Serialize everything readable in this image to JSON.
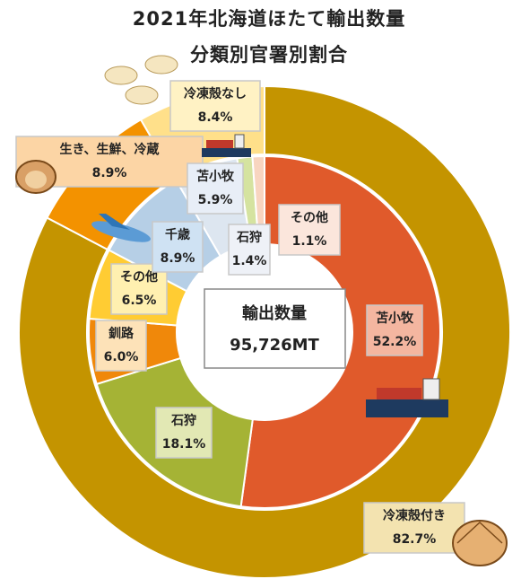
{
  "chart_data": {
    "type": "donut",
    "title": "2021年北海道ほたて輸出数量",
    "subtitle": "分類別官署別割合",
    "center_label": "輸出数量",
    "center_value": "95,726MT",
    "outer": {
      "categories": [
        "冷凍殻付き",
        "生き、生鮮、冷蔵",
        "冷凍殻なし"
      ],
      "values": [
        82.7,
        8.9,
        8.4
      ],
      "value_labels": [
        "82.7%",
        "8.9%",
        "8.4%"
      ],
      "colors": [
        "#c49400",
        "#f39200",
        "#ffe08a"
      ],
      "label_colors": [
        "#f3e3b0",
        "#fcd5a5",
        "#fff2c4"
      ]
    },
    "inner": {
      "categories": [
        "苫小牧",
        "石狩",
        "釧路",
        "その他",
        "千歳",
        "苫小牧",
        "石狩",
        "その他"
      ],
      "values": [
        52.2,
        18.1,
        6.0,
        6.5,
        8.9,
        5.9,
        1.4,
        1.1
      ],
      "value_labels": [
        "52.2%",
        "18.1%",
        "6.0%",
        "6.5%",
        "8.9%",
        "5.9%",
        "1.4%",
        "1.1%"
      ],
      "colors": [
        "#e05a2b",
        "#a5b335",
        "#f0880a",
        "#ffcc33",
        "#b6cfe6",
        "#dde6f0",
        "#d5e3a0",
        "#f8d5c0"
      ],
      "label_colors": [
        "#f4b6a0",
        "#e2e8b4",
        "#fde2b8",
        "#fff0b0",
        "#cfe2f3",
        "#e8eef7",
        "#eef1f7",
        "#fbe6dc"
      ]
    }
  }
}
